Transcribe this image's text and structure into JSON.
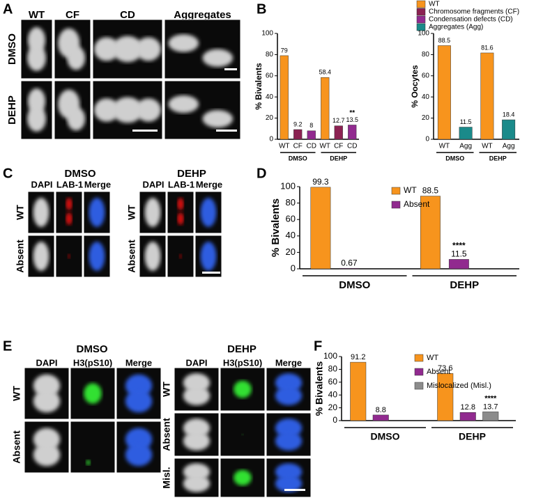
{
  "figure": {
    "panel_labels": [
      "A",
      "B",
      "C",
      "D",
      "E",
      "F"
    ],
    "A": {
      "columns": [
        "WT",
        "CF",
        "CD",
        "Aggregates"
      ],
      "rows": [
        "DMSO",
        "DEHP"
      ]
    },
    "C": {
      "conditions": [
        "DMSO",
        "DEHP"
      ],
      "channels": [
        "DAPI",
        "LAB-1",
        "Merge"
      ],
      "rows": [
        "WT",
        "Absent"
      ]
    },
    "E": {
      "conditions": [
        "DMSO",
        "DEHP"
      ],
      "channels": [
        "DAPI",
        "H3(pS10)",
        "Merge"
      ],
      "rows": [
        "WT",
        "Absent",
        "Misl."
      ]
    },
    "B_legend": [
      {
        "name": "WT",
        "color": "#f7941d"
      },
      {
        "name": "Chromosome fragments (CF)",
        "color": "#8b2252"
      },
      {
        "name": "Condensation defects (CD)",
        "color": "#912a8f"
      },
      {
        "name": "Aggregates (Agg)",
        "color": "#1a8a8a"
      }
    ]
  },
  "chart_data": [
    {
      "type": "bar",
      "y_label": "% Bivalents",
      "categories": [
        "WT",
        "CF",
        "CD",
        "WT",
        "CF",
        "CD"
      ],
      "groups": [
        "DMSO",
        "DEHP"
      ],
      "values": [
        79,
        9.2,
        8,
        58.4,
        12.7,
        13.5
      ],
      "colors": [
        "#f7941d",
        "#8b2252",
        "#912a8f",
        "#f7941d",
        "#8b2252",
        "#912a8f"
      ],
      "annotation": "**",
      "ylim": [
        0,
        100
      ],
      "yticks": [
        0,
        20,
        40,
        60,
        80,
        100
      ]
    },
    {
      "type": "bar",
      "y_label": "% Oocytes",
      "categories": [
        "WT",
        "Agg",
        "WT",
        "Agg"
      ],
      "groups": [
        "DMSO",
        "DEHP"
      ],
      "values": [
        88.5,
        11.5,
        81.6,
        18.4
      ],
      "colors": [
        "#f7941d",
        "#1a8a8a",
        "#f7941d",
        "#1a8a8a"
      ],
      "ylim": [
        0,
        100
      ],
      "yticks": [
        0,
        20,
        40,
        60,
        80,
        100
      ]
    },
    {
      "type": "grouped_bar",
      "y_label": "% Bivalents",
      "categories": [
        "DMSO",
        "DEHP"
      ],
      "series": [
        {
          "name": "WT",
          "color": "#f7941d",
          "values": [
            99.3,
            88.5
          ]
        },
        {
          "name": "Absent",
          "color": "#912a8f",
          "values": [
            0.67,
            11.5
          ]
        }
      ],
      "annotation": "****",
      "ylim": [
        0,
        100
      ],
      "yticks": [
        0,
        20,
        40,
        60,
        80,
        100
      ]
    },
    {
      "type": "grouped_bar",
      "y_label": "% Bivalents",
      "categories": [
        "DMSO",
        "DEHP"
      ],
      "series": [
        {
          "name": "WT",
          "color": "#f7941d",
          "values": [
            91.2,
            73.6
          ]
        },
        {
          "name": "Absent",
          "color": "#912a8f",
          "values": [
            8.8,
            12.8
          ]
        },
        {
          "name": "Mislocalized (Misl.)",
          "color": "#8c8c8c",
          "values": [
            null,
            13.7
          ]
        }
      ],
      "annotation": "****",
      "ylim": [
        0,
        100
      ],
      "yticks": [
        0,
        20,
        40,
        60,
        80,
        100
      ]
    }
  ]
}
